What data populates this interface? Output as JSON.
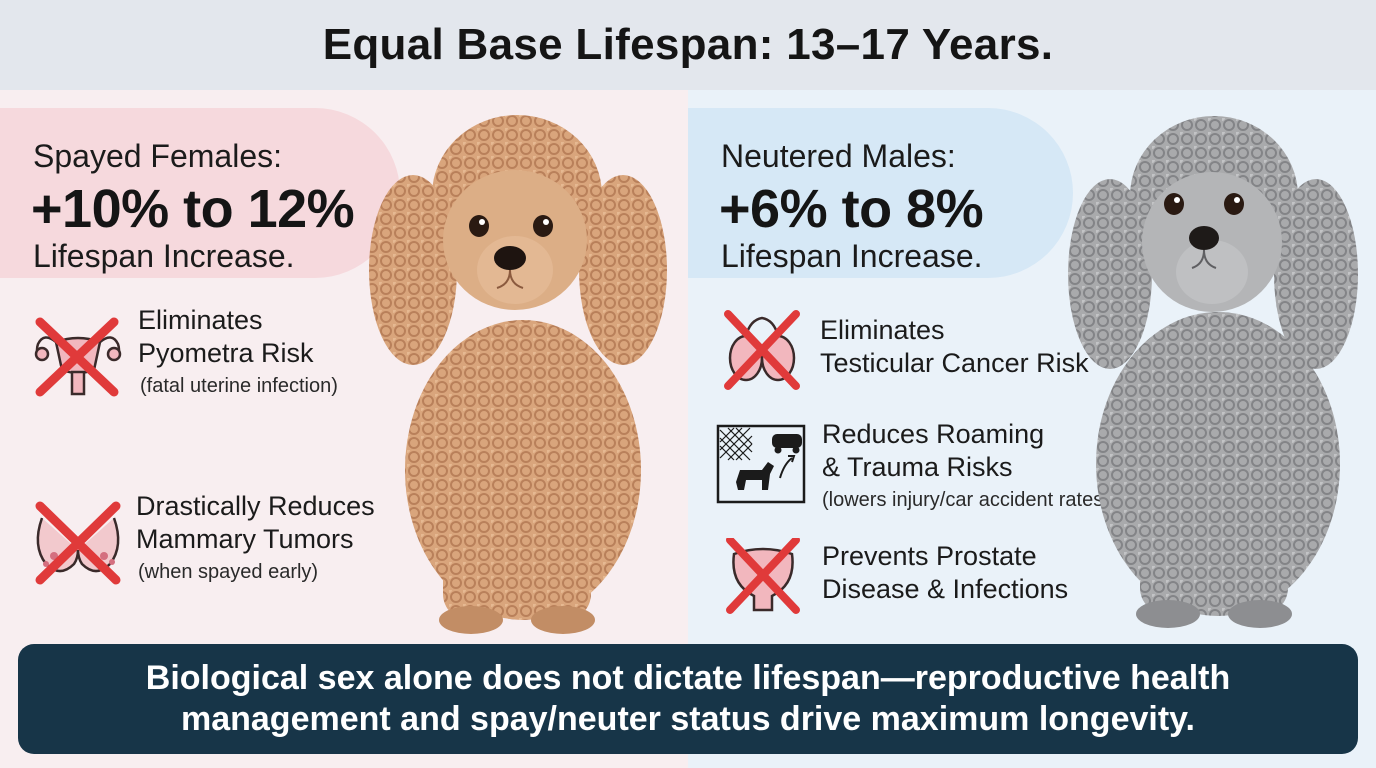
{
  "header": {
    "title": "Equal Base Lifespan: 13–17 Years."
  },
  "left": {
    "kicker": "Spayed Females:",
    "big": "+10% to 12%",
    "after": "Lifespan Increase.",
    "items": [
      {
        "icon": "uterus-crossed-icon",
        "line1": "Eliminates",
        "line2": "Pyometra Risk",
        "note": "(fatal uterine infection)"
      },
      {
        "icon": "mammary-crossed-icon",
        "line1": "Drastically Reduces",
        "line2": "Mammary Tumors",
        "note": "(when spayed early)"
      }
    ],
    "dog": "apricot-poodle-illustration"
  },
  "right": {
    "kicker": "Neutered Males:",
    "big": "+6% to 8%",
    "after": "Lifespan Increase.",
    "items": [
      {
        "icon": "testicle-crossed-icon",
        "line1": "Eliminates",
        "line2": "Testicular Cancer Risk"
      },
      {
        "icon": "roaming-dog-car-icon",
        "line1": "Reduces Roaming",
        "line2": "& Trauma Risks",
        "note": "(lowers injury/car accident rates)"
      },
      {
        "icon": "prostate-crossed-icon",
        "line1": "Prevents Prostate",
        "line2": "Disease & Infections"
      }
    ],
    "dog": "silver-poodle-illustration"
  },
  "footer": {
    "line1": "Biological sex alone does not dictate lifespan—reproductive health",
    "line2": "management and spay/neuter status drive maximum longevity."
  },
  "colors": {
    "header_bg": "#e3e7ed",
    "left_bg": "#f8eef0",
    "right_bg": "#eaf2f9",
    "left_pill": "#f6d9dd",
    "right_pill": "#d6e8f6",
    "cross": "#e03a3a",
    "footer_bg": "#173548"
  }
}
